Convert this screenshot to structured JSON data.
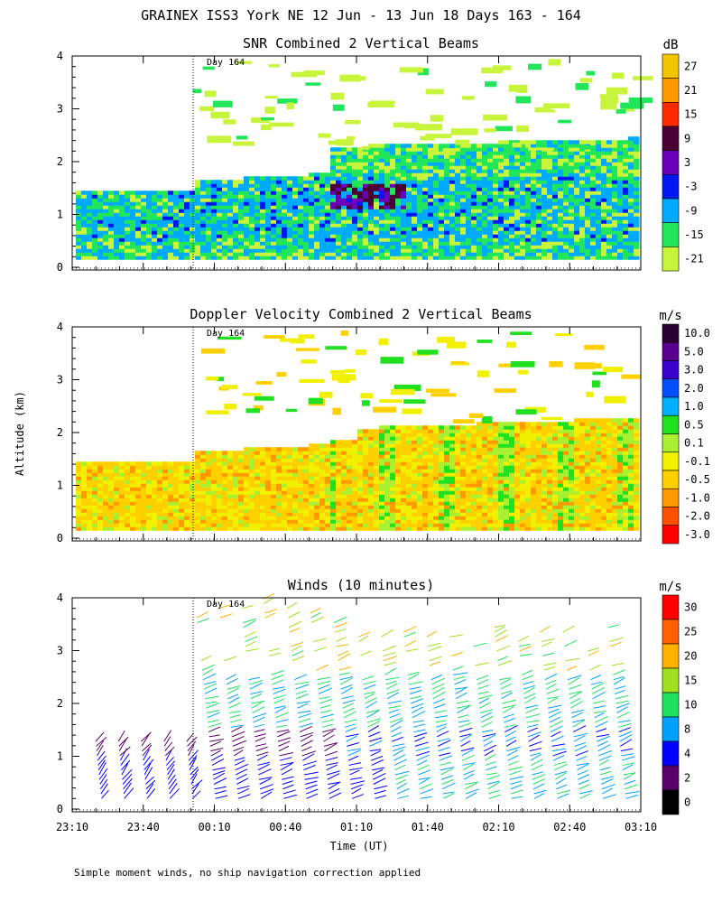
{
  "figure_title": "GRAINEX ISS3 York NE  12 Jun - 13 Jun 18 Days 163 - 164",
  "footnote": "Simple moment winds, no ship navigation correction applied",
  "chart_data": [
    {
      "type": "heatmap",
      "title": "SNR Combined 2 Vertical Beams",
      "ylabel": "",
      "xlabel": "",
      "ylim": [
        0,
        4
      ],
      "y_ticks": [
        "0",
        "1",
        "2",
        "3",
        "4"
      ],
      "day_marker": {
        "label": "Day 164",
        "x_time": "00:00"
      },
      "colorbar": {
        "units": "dB",
        "labels": [
          "27",
          "21",
          "15",
          "9",
          "3",
          "-3",
          "-9",
          "-15",
          "-21"
        ],
        "colors": [
          "#f2c500",
          "#ff9900",
          "#ff2a00",
          "#4a0035",
          "#6a00b8",
          "#0018f0",
          "#00aaff",
          "#22e65a",
          "#c8f53c"
        ]
      },
      "dominant_range_db": [
        -21,
        3
      ]
    },
    {
      "type": "heatmap",
      "title": "Doppler Velocity Combined 2 Vertical Beams",
      "ylabel": "Altitude (km)",
      "xlabel": "",
      "ylim": [
        0,
        4
      ],
      "y_ticks": [
        "0",
        "1",
        "2",
        "3",
        "4"
      ],
      "day_marker": {
        "label": "Day 164",
        "x_time": "00:00"
      },
      "colorbar": {
        "units": "m/s",
        "labels": [
          "10.0",
          "5.0",
          "3.0",
          "2.0",
          "1.0",
          "0.5",
          "0.1",
          "-0.1",
          "-0.5",
          "-1.0",
          "-2.0",
          "-3.0"
        ],
        "colors": [
          "#2a0030",
          "#5a0090",
          "#3a00d0",
          "#0050ff",
          "#00b0ff",
          "#20e020",
          "#a8f030",
          "#f0f000",
          "#ffd000",
          "#ff9a00",
          "#ff5000",
          "#ff0000"
        ]
      },
      "dominant_range_ms": [
        -1.0,
        0.5
      ]
    },
    {
      "type": "wind_barbs",
      "title": "Winds (10 minutes)",
      "ylabel": "",
      "xlabel": "Time (UT)",
      "ylim": [
        0,
        4
      ],
      "y_ticks": [
        "0",
        "1",
        "2",
        "3",
        "4"
      ],
      "x_ticks": [
        "23:10",
        "23:40",
        "00:10",
        "00:40",
        "01:10",
        "01:40",
        "02:10",
        "02:40",
        "03:10"
      ],
      "day_marker": {
        "label": "Day 164",
        "x_time": "00:00"
      },
      "colorbar": {
        "units": "m/s",
        "labels": [
          "30",
          "25",
          "20",
          "15",
          "10",
          "8",
          "4",
          "2",
          "0"
        ],
        "colors": [
          "#ff0000",
          "#ff6000",
          "#ffb000",
          "#a0e020",
          "#20e060",
          "#00a0ff",
          "#0000ff",
          "#5a006a",
          "#000000"
        ]
      },
      "profile_count": 24
    }
  ]
}
